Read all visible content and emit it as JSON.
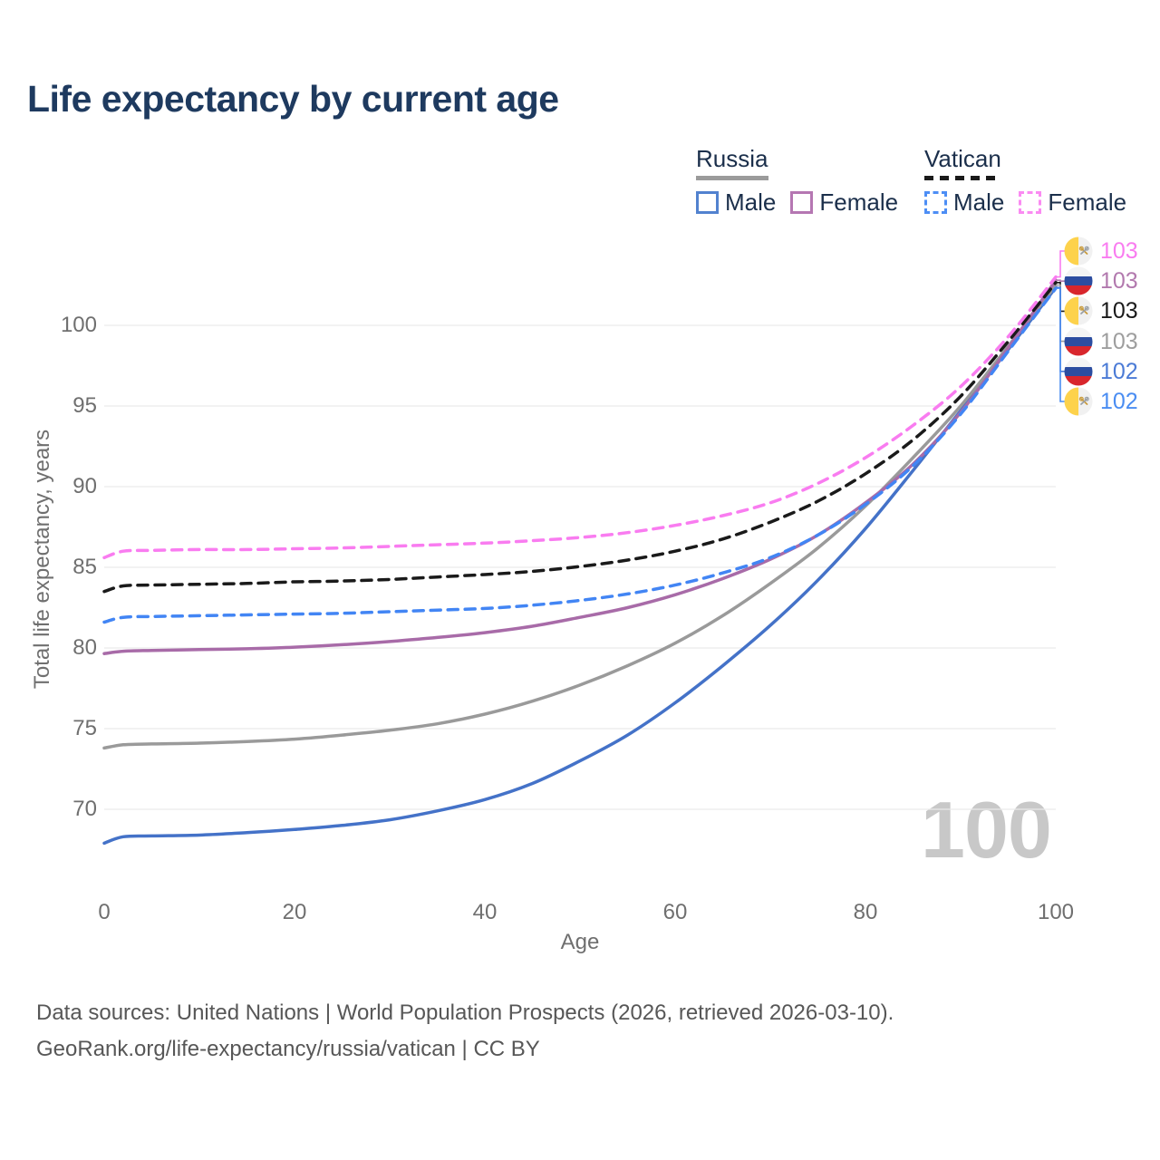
{
  "title": "Life expectancy by current age",
  "legend": {
    "groups": [
      {
        "id": "russia",
        "label": "Russia",
        "line_style": "solid",
        "line_color": "#9b9b9b",
        "items": [
          {
            "id": "russia-male",
            "label": "Male",
            "swatch_color": "#5282cf",
            "swatch_style": "solid"
          },
          {
            "id": "russia-female",
            "label": "Female",
            "swatch_color": "#b577b2",
            "swatch_style": "solid"
          }
        ]
      },
      {
        "id": "vatican",
        "label": "Vatican",
        "line_style": "dashed",
        "line_color": "#1a1a1a",
        "items": [
          {
            "id": "vatican-male",
            "label": "Male",
            "swatch_color": "#4d8ef5",
            "swatch_style": "dashed"
          },
          {
            "id": "vatican-female",
            "label": "Female",
            "swatch_color": "#fa8bf2",
            "swatch_style": "dashed"
          }
        ]
      }
    ]
  },
  "chart_data": {
    "type": "line",
    "title": "Life expectancy by current age",
    "xlabel": "Age",
    "ylabel": "Total life expectancy, years",
    "xlim": [
      0,
      100
    ],
    "ylim": [
      66.5,
      104.5
    ],
    "x_ticks": [
      0,
      20,
      40,
      60,
      80,
      100
    ],
    "y_ticks": [
      70,
      75,
      80,
      85,
      90,
      95,
      100
    ],
    "grid": "horizontal-only",
    "legend_position": "top-right",
    "x": [
      0,
      2,
      5,
      10,
      15,
      20,
      25,
      30,
      35,
      40,
      45,
      50,
      55,
      60,
      65,
      70,
      75,
      80,
      85,
      90,
      95,
      100
    ],
    "series": [
      {
        "id": "vatican-female",
        "name": "Vatican Female",
        "style": "dashed",
        "color": "#f97cf0",
        "values": [
          85.6,
          86.0,
          86.05,
          86.1,
          86.1,
          86.15,
          86.2,
          86.3,
          86.4,
          86.5,
          86.65,
          86.85,
          87.15,
          87.6,
          88.2,
          89.0,
          90.2,
          91.8,
          93.8,
          96.2,
          99.3,
          103.0
        ]
      },
      {
        "id": "vatican-total",
        "name": "Vatican",
        "style": "dashed",
        "color": "#1a1a1a",
        "values": [
          83.5,
          83.85,
          83.9,
          83.95,
          84.0,
          84.1,
          84.15,
          84.25,
          84.4,
          84.55,
          84.75,
          85.05,
          85.45,
          86.0,
          86.75,
          87.8,
          89.1,
          90.8,
          92.9,
          95.6,
          99.0,
          102.65
        ]
      },
      {
        "id": "vatican-male",
        "name": "Vatican Male",
        "style": "dashed",
        "color": "#4285f4",
        "values": [
          81.6,
          81.9,
          81.95,
          82.0,
          82.05,
          82.1,
          82.15,
          82.25,
          82.35,
          82.45,
          82.65,
          82.95,
          83.35,
          83.9,
          84.65,
          85.6,
          87.0,
          88.9,
          91.3,
          94.5,
          98.4,
          102.3
        ]
      },
      {
        "id": "russia-female",
        "name": "Russia Female",
        "style": "solid",
        "color": "#a86ba8",
        "values": [
          79.65,
          79.8,
          79.85,
          79.9,
          79.95,
          80.05,
          80.2,
          80.4,
          80.65,
          80.95,
          81.35,
          81.9,
          82.5,
          83.3,
          84.3,
          85.5,
          87.0,
          89.0,
          91.4,
          94.6,
          98.6,
          102.8
        ]
      },
      {
        "id": "russia-total",
        "name": "Russia",
        "style": "solid",
        "color": "#9a9a9a",
        "values": [
          73.8,
          74.0,
          74.05,
          74.1,
          74.2,
          74.35,
          74.6,
          74.9,
          75.3,
          75.9,
          76.7,
          77.7,
          78.9,
          80.3,
          82.0,
          84.0,
          86.2,
          88.8,
          91.8,
          95.0,
          98.7,
          102.5
        ]
      },
      {
        "id": "russia-male",
        "name": "Russia Male",
        "style": "solid",
        "color": "#4472c8",
        "values": [
          67.9,
          68.3,
          68.35,
          68.4,
          68.55,
          68.75,
          69.0,
          69.35,
          69.9,
          70.6,
          71.6,
          73.0,
          74.6,
          76.6,
          78.9,
          81.4,
          84.2,
          87.4,
          91.0,
          94.7,
          98.5,
          102.35
        ]
      }
    ]
  },
  "end_labels": [
    {
      "series": "vatican-female",
      "flag": "vatican",
      "value": "103",
      "color": "#f97cf0"
    },
    {
      "series": "russia-female",
      "flag": "russia",
      "value": "103",
      "color": "#b279ae"
    },
    {
      "series": "vatican-total",
      "flag": "vatican",
      "value": "103",
      "color": "#1a1a1a"
    },
    {
      "series": "russia-total",
      "flag": "russia",
      "value": "103",
      "color": "#9e9e9e"
    },
    {
      "series": "russia-male",
      "flag": "russia",
      "value": "102",
      "color": "#4b7bd6"
    },
    {
      "series": "vatican-male",
      "flag": "vatican",
      "value": "102",
      "color": "#4a8df2"
    }
  ],
  "watermark": "100",
  "flag_colors": {
    "russia_white": "#f4f4f4",
    "russia_blue": "#2c4da0",
    "russia_red": "#d8262c",
    "vatican_yellow": "#fdd24c",
    "vatican_white": "#f1f1f1",
    "vatican_key_gold": "#c89b3c",
    "vatican_key_silver": "#9aa0a6"
  },
  "footer": {
    "line1": "Data sources: United Nations | World Population Prospects (2026, retrieved 2026-03-10).",
    "line2": "GeoRank.org/life-expectancy/russia/vatican | CC BY"
  }
}
